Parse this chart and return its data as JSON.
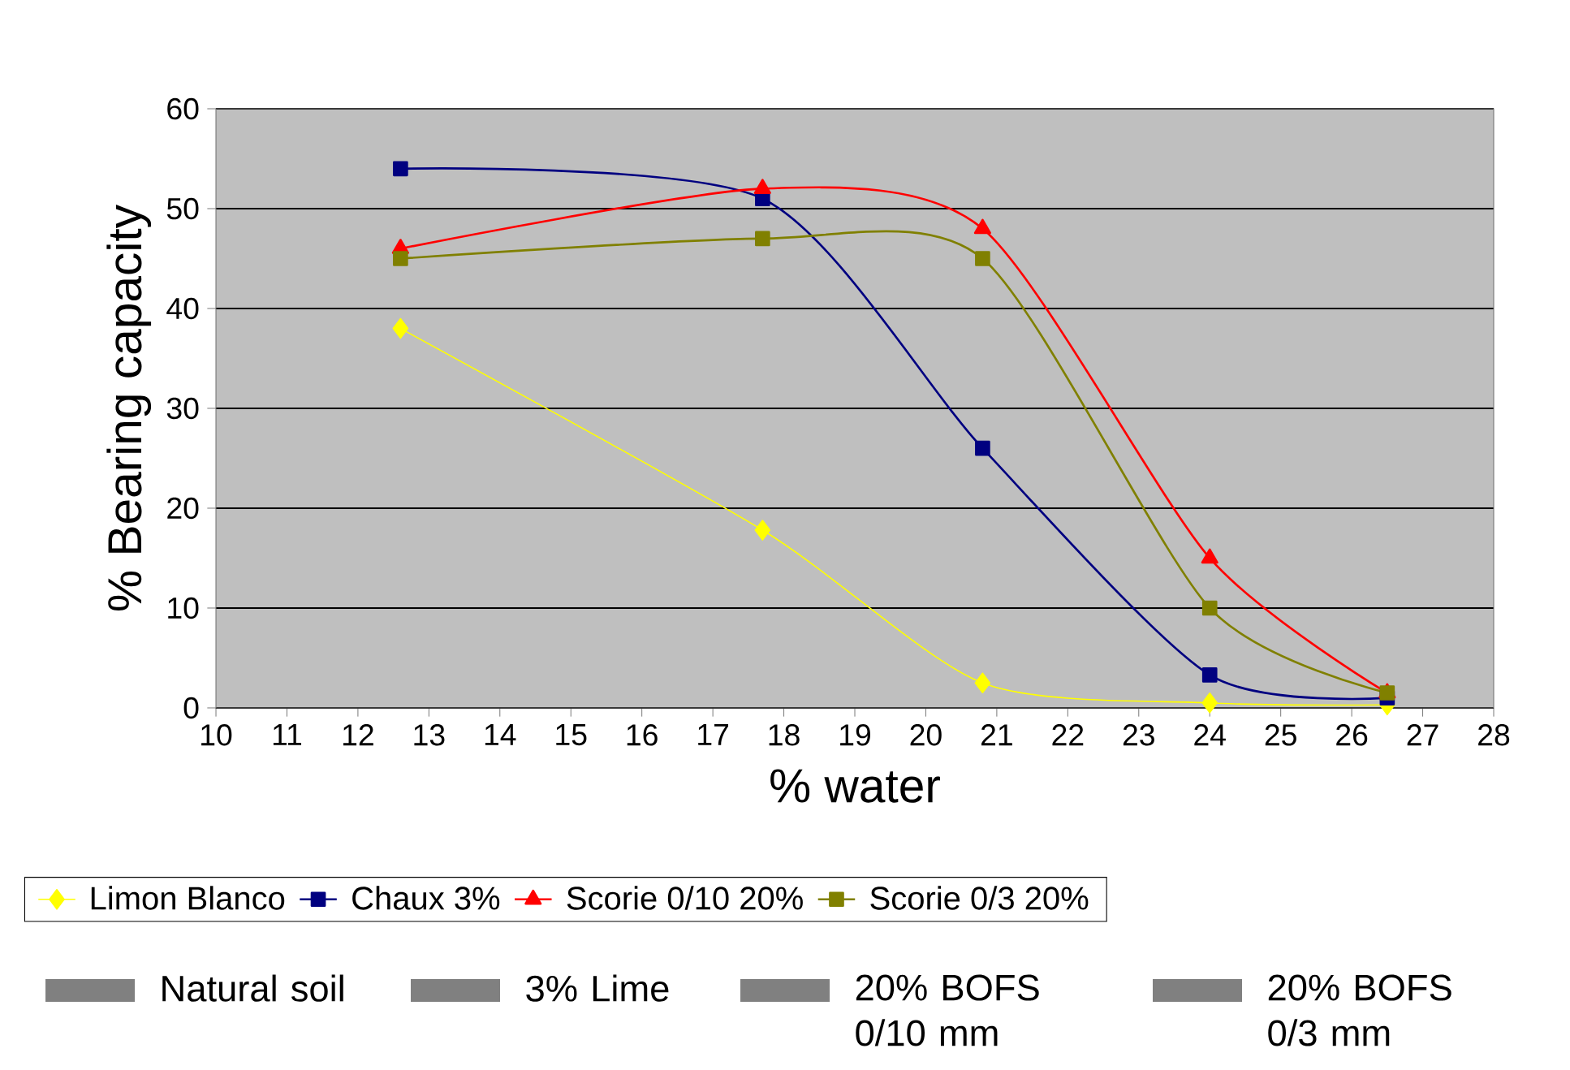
{
  "chart_data": {
    "type": "line",
    "xlabel": "% water",
    "ylabel": "% Bearing capacity",
    "x": [
      12.6,
      17.7,
      20.8,
      24,
      26.5
    ],
    "series": [
      {
        "name": "Limon Blanco",
        "color": "#ffff00",
        "marker": "diamond",
        "values": [
          38,
          17.8,
          2.5,
          0.5,
          0.3
        ]
      },
      {
        "name": "Chaux 3%",
        "color": "#000080",
        "marker": "square",
        "values": [
          54,
          51,
          26,
          3.3,
          1
        ]
      },
      {
        "name": "Scorie 0/10 20%",
        "color": "#ff0000",
        "marker": "triangle",
        "values": [
          46,
          52,
          48,
          15,
          1.5
        ]
      },
      {
        "name": "Scorie 0/3 20%",
        "color": "#808000",
        "marker": "square",
        "values": [
          45,
          47,
          45,
          10,
          1.5
        ]
      }
    ],
    "xlim": [
      10,
      28
    ],
    "xticks": [
      10,
      11,
      12,
      13,
      14,
      15,
      16,
      17,
      18,
      19,
      20,
      21,
      22,
      23,
      24,
      25,
      26,
      27,
      28
    ],
    "ylim": [
      0,
      60
    ],
    "yticks": [
      0,
      10,
      20,
      30,
      40,
      50,
      60
    ],
    "grid": "y",
    "legend": "bottom",
    "annotations": [
      "Natural soil",
      "3% Lime",
      "20% BOFS 0/10 mm",
      "20% BOFS 0/3 mm"
    ]
  }
}
